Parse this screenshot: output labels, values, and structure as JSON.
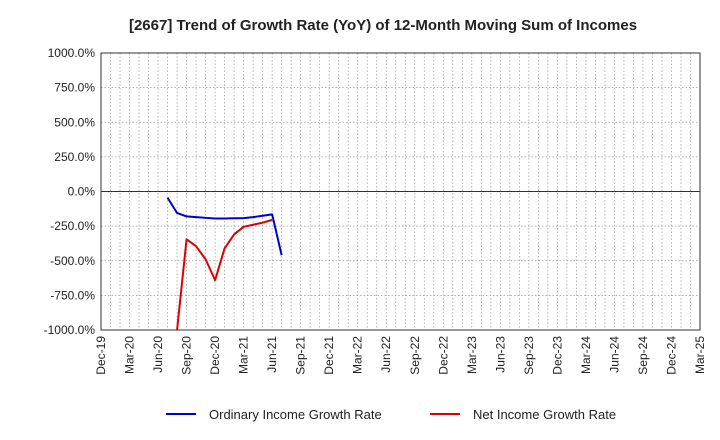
{
  "chart_data": {
    "type": "line",
    "title": "[2667]  Trend of Growth Rate (YoY) of 12-Month Moving Sum of Incomes",
    "xlabel": "",
    "ylabel": "",
    "ylim": [
      -1000,
      1000
    ],
    "yticks": [
      1000,
      750,
      500,
      250,
      0,
      -250,
      -500,
      -750,
      -1000
    ],
    "ytick_labels": [
      "1000.0%",
      "750.0%",
      "500.0%",
      "250.0%",
      "0.0%",
      "-250.0%",
      "-500.0%",
      "-750.0%",
      "-1000.0%"
    ],
    "x_months": [
      "Dec-19",
      "Jan-20",
      "Feb-20",
      "Mar-20",
      "Apr-20",
      "May-20",
      "Jun-20",
      "Jul-20",
      "Aug-20",
      "Sep-20",
      "Oct-20",
      "Nov-20",
      "Dec-20",
      "Jan-21",
      "Feb-21",
      "Mar-21",
      "Apr-21",
      "May-21",
      "Jun-21",
      "Jul-21",
      "Aug-21",
      "Sep-21",
      "Oct-21",
      "Nov-21",
      "Dec-21",
      "Jan-22",
      "Feb-22",
      "Mar-22",
      "Apr-22",
      "May-22",
      "Jun-22",
      "Jul-22",
      "Aug-22",
      "Sep-22",
      "Oct-22",
      "Nov-22",
      "Dec-22",
      "Jan-23",
      "Feb-23",
      "Mar-23",
      "Apr-23",
      "May-23",
      "Jun-23",
      "Jul-23",
      "Aug-23",
      "Sep-23",
      "Oct-23",
      "Nov-23",
      "Dec-23",
      "Jan-24",
      "Feb-24",
      "Mar-24",
      "Apr-24",
      "May-24",
      "Jun-24",
      "Jul-24",
      "Aug-24",
      "Sep-24",
      "Oct-24",
      "Nov-24",
      "Dec-24",
      "Jan-25",
      "Feb-25",
      "Mar-25"
    ],
    "xtick_labels": [
      "Dec-19",
      "Mar-20",
      "Jun-20",
      "Sep-20",
      "Dec-20",
      "Mar-21",
      "Jun-21",
      "Sep-21",
      "Dec-21",
      "Mar-22",
      "Jun-22",
      "Sep-22",
      "Dec-22",
      "Mar-23",
      "Jun-23",
      "Sep-23",
      "Dec-23",
      "Mar-24",
      "Jun-24",
      "Sep-24",
      "Dec-24",
      "Mar-25"
    ],
    "grid": true,
    "legend_position": "bottom",
    "series": [
      {
        "name": "Ordinary Income Growth Rate",
        "color": "#0000cc",
        "points": [
          {
            "x": "Jul-20",
            "y": -45
          },
          {
            "x": "Aug-20",
            "y": -155
          },
          {
            "x": "Sep-20",
            "y": -180
          },
          {
            "x": "Oct-20",
            "y": -185
          },
          {
            "x": "Nov-20",
            "y": -190
          },
          {
            "x": "Dec-20",
            "y": -195
          },
          {
            "x": "Jan-21",
            "y": -195
          },
          {
            "x": "Feb-21",
            "y": -193
          },
          {
            "x": "Mar-21",
            "y": -192
          },
          {
            "x": "Apr-21",
            "y": -185
          },
          {
            "x": "May-21",
            "y": -175
          },
          {
            "x": "Jun-21",
            "y": -165
          },
          {
            "x": "Jul-21",
            "y": -460
          }
        ]
      },
      {
        "name": "Net Income Growth Rate",
        "color": "#dd0000",
        "points": [
          {
            "x": "Aug-20",
            "y": -1000
          },
          {
            "x": "Sep-20",
            "y": -345
          },
          {
            "x": "Oct-20",
            "y": -395
          },
          {
            "x": "Nov-20",
            "y": -490
          },
          {
            "x": "Dec-20",
            "y": -640
          },
          {
            "x": "Jan-21",
            "y": -410
          },
          {
            "x": "Feb-21",
            "y": -310
          },
          {
            "x": "Mar-21",
            "y": -255
          },
          {
            "x": "Apr-21",
            "y": -240
          },
          {
            "x": "May-21",
            "y": -225
          },
          {
            "x": "Jun-21",
            "y": -205
          }
        ]
      }
    ]
  }
}
